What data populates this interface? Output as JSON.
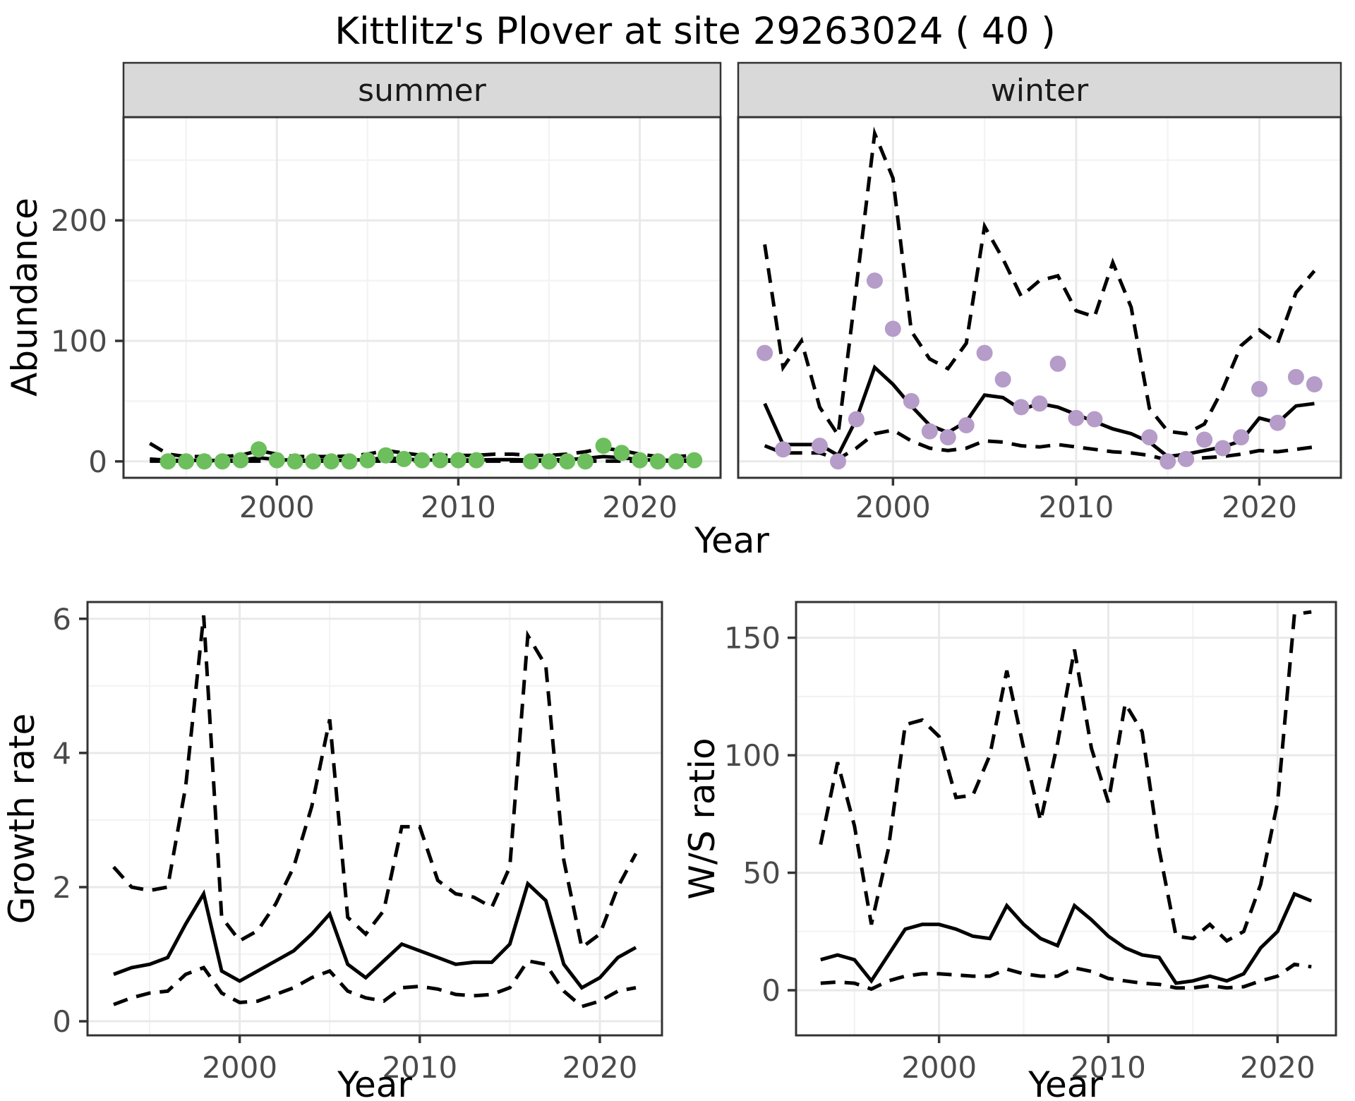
{
  "title": "Kittlitz's Plover at site 29263024 ( 40 )",
  "colors": {
    "summer_point": "#6cbf5c",
    "winter_point": "#b69cc9",
    "fit_line": "#000000",
    "ci_line": "#000000",
    "grid_major": "#e9e9e9",
    "grid_minor": "#f3f3f3",
    "panel_border": "#333333",
    "strip_fill": "#d9d9d9",
    "tick_mark": "#333333",
    "tick_label": "#4a4a4a",
    "axis_title": "#000000",
    "panel_bg": "#ffffff"
  },
  "chart_data": [
    {
      "type": "line",
      "name": "abundance-by-season",
      "xlabel": "Year",
      "ylabel": "Abundance",
      "xticks": [
        2000,
        2010,
        2020
      ],
      "x_minor": [
        1995,
        2005,
        2015
      ],
      "yticks": [
        0,
        100,
        200
      ],
      "y_minor": [
        50,
        150,
        250
      ],
      "xlim": [
        1991.55,
        2024.45
      ],
      "ylim": [
        -13.6,
        285.6
      ],
      "legend": "none",
      "grid": true,
      "years": [
        1993,
        1994,
        1995,
        1996,
        1997,
        1998,
        1999,
        2000,
        2001,
        2002,
        2003,
        2004,
        2005,
        2006,
        2007,
        2008,
        2009,
        2010,
        2011,
        2012,
        2013,
        2014,
        2015,
        2016,
        2017,
        2018,
        2019,
        2020,
        2021,
        2022,
        2023
      ],
      "facets": [
        {
          "name": "summer",
          "point_color": "#6cbf5c",
          "obs_years": [
            1994,
            1995,
            1996,
            1997,
            1998,
            1999,
            2000,
            2001,
            2002,
            2003,
            2004,
            2005,
            2006,
            2007,
            2008,
            2009,
            2010,
            2011,
            2014,
            2015,
            2016,
            2017,
            2018,
            2019,
            2020,
            2021,
            2022,
            2023
          ],
          "obs": [
            0,
            0,
            0,
            0,
            1,
            10,
            1,
            0,
            0,
            0,
            0,
            1,
            5,
            2,
            1,
            1,
            1,
            1,
            0,
            0,
            0,
            0,
            13,
            7,
            1,
            0,
            0,
            1
          ],
          "fit": [
            2,
            1,
            0.8,
            0.8,
            0.8,
            1.2,
            3,
            1.5,
            1,
            0.9,
            0.9,
            1,
            1.5,
            3,
            2,
            1.2,
            1.2,
            1.2,
            1.2,
            1.5,
            1.5,
            1.2,
            1.2,
            1.5,
            2.5,
            4,
            3,
            1.5,
            1,
            1,
            1.2
          ],
          "upper": [
            15,
            6,
            4,
            4,
            4,
            5,
            9,
            6,
            4,
            4,
            4,
            4.5,
            6,
            9,
            7,
            5,
            5,
            5,
            5,
            6,
            6,
            5,
            5,
            6,
            8,
            11,
            9,
            6,
            4,
            4,
            5
          ],
          "lower": [
            0.2,
            0.2,
            0.2,
            0.2,
            0.2,
            0.2,
            0.2,
            0.2,
            0.2,
            0.2,
            0.2,
            0.2,
            0.2,
            0.2,
            0.2,
            0.2,
            0.2,
            0.2,
            0.2,
            0.2,
            0.2,
            0.2,
            0.2,
            0.2,
            0.2,
            0.2,
            0.2,
            0.2,
            0.2,
            0.2,
            0.2
          ]
        },
        {
          "name": "winter",
          "point_color": "#b69cc9",
          "obs_years": [
            1993,
            1994,
            1996,
            1997,
            1998,
            1999,
            2000,
            2001,
            2002,
            2003,
            2004,
            2005,
            2006,
            2007,
            2008,
            2009,
            2010,
            2011,
            2014,
            2015,
            2016,
            2017,
            2018,
            2019,
            2020,
            2021,
            2022,
            2023
          ],
          "obs": [
            90,
            10,
            13,
            0,
            35,
            150,
            110,
            50,
            25,
            20,
            30,
            90,
            68,
            45,
            48,
            81,
            36,
            35,
            20,
            0,
            2,
            18,
            11,
            20,
            60,
            32,
            70,
            64
          ],
          "fit": [
            48,
            14,
            14,
            14,
            5,
            35,
            78,
            64,
            46,
            30,
            24,
            33,
            55,
            53,
            43,
            48,
            45,
            39,
            33,
            27,
            23,
            16,
            4,
            6,
            9,
            12,
            17,
            36,
            32,
            46,
            48
          ],
          "upper": [
            180,
            78,
            100,
            45,
            22,
            145,
            272,
            235,
            108,
            85,
            77,
            98,
            195,
            168,
            137,
            150,
            154,
            125,
            120,
            165,
            128,
            44,
            25,
            23,
            31,
            60,
            96,
            109,
            98,
            140,
            158
          ],
          "lower": [
            13,
            7,
            7,
            7,
            2,
            11,
            23,
            26,
            17,
            11,
            9,
            11,
            17,
            16,
            13,
            12,
            14,
            12,
            10,
            8,
            7,
            5,
            1,
            2,
            3,
            4,
            6,
            9,
            8,
            10,
            12
          ]
        }
      ]
    },
    {
      "type": "line",
      "name": "growth-rate",
      "xlabel": "Year",
      "ylabel": "Growth rate",
      "xticks": [
        2000,
        2010,
        2020
      ],
      "x_minor": [
        1995,
        2005,
        2015
      ],
      "yticks": [
        0,
        2,
        4,
        6
      ],
      "y_minor": [
        1,
        3,
        5
      ],
      "xlim": [
        1991.55,
        2023.45
      ],
      "ylim": [
        -0.21,
        6.25
      ],
      "grid": true,
      "years": [
        1993,
        1994,
        1995,
        1996,
        1997,
        1998,
        1999,
        2000,
        2001,
        2002,
        2003,
        2004,
        2005,
        2006,
        2007,
        2008,
        2009,
        2010,
        2011,
        2012,
        2013,
        2014,
        2015,
        2016,
        2017,
        2018,
        2019,
        2020,
        2021,
        2022
      ],
      "fit": [
        0.7,
        0.8,
        0.85,
        0.95,
        1.45,
        1.9,
        0.75,
        0.6,
        0.75,
        0.9,
        1.05,
        1.3,
        1.6,
        0.85,
        0.65,
        0.9,
        1.15,
        1.05,
        0.95,
        0.85,
        0.88,
        0.88,
        1.15,
        2.05,
        1.8,
        0.85,
        0.5,
        0.65,
        0.95,
        1.1
      ],
      "upper": [
        2.3,
        2.0,
        1.95,
        2.0,
        3.5,
        6.05,
        1.55,
        1.2,
        1.35,
        1.75,
        2.3,
        3.2,
        4.5,
        1.55,
        1.3,
        1.65,
        2.9,
        2.9,
        2.1,
        1.9,
        1.85,
        1.7,
        2.3,
        5.75,
        5.3,
        2.4,
        1.1,
        1.3,
        2.0,
        2.5
      ],
      "lower": [
        0.25,
        0.35,
        0.42,
        0.45,
        0.7,
        0.8,
        0.42,
        0.28,
        0.3,
        0.4,
        0.5,
        0.65,
        0.75,
        0.45,
        0.35,
        0.3,
        0.5,
        0.52,
        0.48,
        0.4,
        0.38,
        0.4,
        0.5,
        0.9,
        0.85,
        0.45,
        0.22,
        0.3,
        0.45,
        0.5
      ]
    },
    {
      "type": "line",
      "name": "winter-summer-ratio",
      "xlabel": "Year",
      "ylabel": "W/S ratio",
      "xticks": [
        2000,
        2010,
        2020
      ],
      "x_minor": [
        1995,
        2005,
        2015
      ],
      "yticks": [
        0,
        50,
        100,
        150
      ],
      "y_minor": [
        25,
        75,
        125
      ],
      "xlim": [
        1991.55,
        2023.45
      ],
      "ylim": [
        -19.2,
        165.2
      ],
      "grid": true,
      "years": [
        1993,
        1994,
        1995,
        1996,
        1997,
        1998,
        1999,
        2000,
        2001,
        2002,
        2003,
        2004,
        2005,
        2006,
        2007,
        2008,
        2009,
        2010,
        2011,
        2012,
        2013,
        2014,
        2015,
        2016,
        2017,
        2018,
        2019,
        2020,
        2021,
        2022
      ],
      "fit": [
        13,
        15,
        13,
        4,
        15,
        26,
        28,
        28,
        26,
        23,
        22,
        36,
        28,
        22,
        19,
        36,
        30,
        23,
        18,
        15,
        14,
        3,
        4,
        6,
        4,
        7,
        18,
        25,
        41,
        38
      ],
      "upper": [
        62,
        97,
        70,
        28,
        60,
        113,
        115,
        108,
        82,
        83,
        100,
        136,
        103,
        72,
        105,
        145,
        103,
        80,
        122,
        110,
        60,
        23,
        22,
        28,
        21,
        25,
        45,
        80,
        160,
        161
      ],
      "lower": [
        3,
        3.5,
        3,
        0.5,
        4,
        6,
        7,
        7,
        6.5,
        6,
        6,
        9,
        7,
        6,
        6,
        9.5,
        8,
        5,
        4,
        3,
        2.5,
        1,
        1,
        2,
        1,
        1.5,
        4,
        6,
        11,
        10
      ]
    }
  ]
}
